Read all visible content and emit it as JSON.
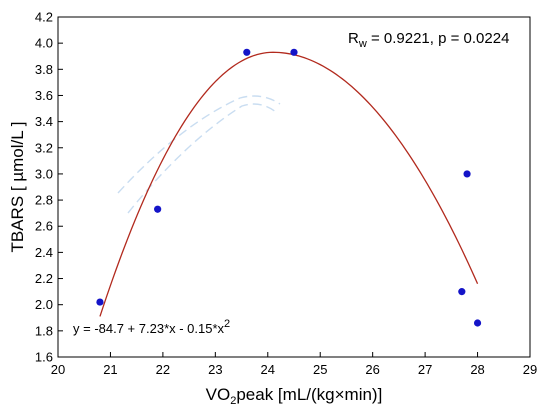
{
  "chart_data": {
    "type": "scatter",
    "x": [
      20.8,
      21.9,
      23.6,
      24.5,
      27.7,
      27.8,
      28.0
    ],
    "y": [
      2.02,
      2.73,
      3.93,
      3.93,
      2.1,
      3.0,
      1.86
    ],
    "xlabel": {
      "base": "VO",
      "sub": "2",
      "rest": "peak [mL/(kg×min)]"
    },
    "ylabel": "TBARS [ µmol/L ]",
    "xlim": [
      20,
      29
    ],
    "ylim": [
      1.6,
      4.2
    ],
    "xticks": [
      "20",
      "21",
      "22",
      "23",
      "24",
      "25",
      "26",
      "27",
      "28",
      "29"
    ],
    "yticks": [
      "1.6",
      "1.8",
      "2.0",
      "2.2",
      "2.4",
      "2.6",
      "2.8",
      "3.0",
      "3.2",
      "3.4",
      "3.6",
      "3.8",
      "4.0",
      "4.2"
    ],
    "fit": {
      "type": "quadratic",
      "coefficients": [
        -84.7,
        7.23,
        -0.15
      ],
      "x_range": [
        20.8,
        28.0
      ],
      "color": "#b22a1e",
      "equation_prefix": "y = -84.7 + 7.23*x - 0.15*x",
      "equation_power": "2"
    },
    "point_color": "#1414c8",
    "annotation": {
      "r_label": "R",
      "r_sub": "w",
      "rest": " = 0.9221, p = 0.0224"
    },
    "grid": false
  }
}
